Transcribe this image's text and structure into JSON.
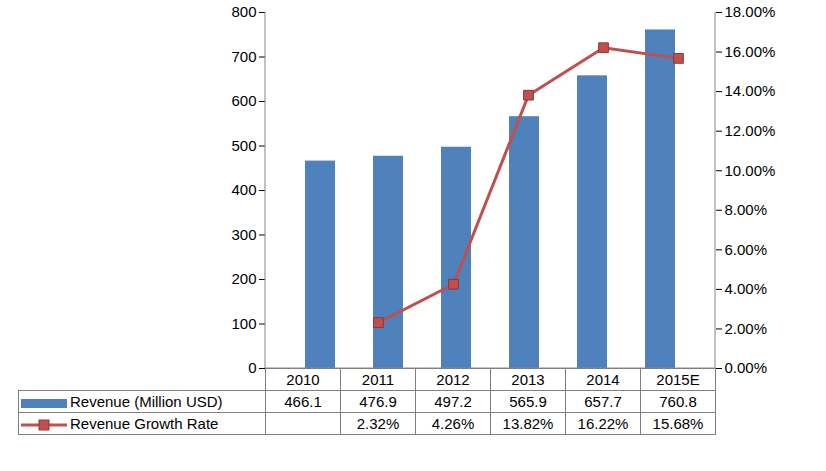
{
  "chart_data": {
    "type": "bar",
    "categories": [
      "2010",
      "2011",
      "2012",
      "2013",
      "2014",
      "2015E"
    ],
    "series": [
      {
        "name": "Revenue (Million USD)",
        "type": "bar",
        "color": "#4f81bd",
        "values": [
          466.1,
          476.9,
          497.2,
          565.9,
          657.7,
          760.8
        ]
      },
      {
        "name": "Revenue Growth Rate",
        "type": "line",
        "axis": "y2",
        "color": "#c0504d",
        "marker": "square",
        "values": [
          null,
          2.32,
          4.26,
          13.82,
          16.22,
          15.68
        ],
        "value_labels": [
          null,
          "2.32%",
          "4.26%",
          "13.82%",
          "16.22%",
          "15.68%"
        ]
      }
    ],
    "ylim": [
      0,
      800
    ],
    "yticks": [
      0,
      100,
      200,
      300,
      400,
      500,
      600,
      700,
      800
    ],
    "y2lim": [
      0,
      18
    ],
    "y2ticks": [
      {
        "value": 0,
        "label": "0.00%"
      },
      {
        "value": 2,
        "label": "2.00%"
      },
      {
        "value": 4,
        "label": "4.00%"
      },
      {
        "value": 6,
        "label": "6.00%"
      },
      {
        "value": 8,
        "label": "8.00%"
      },
      {
        "value": 10,
        "label": "10.00%"
      },
      {
        "value": 12,
        "label": "12.00%"
      },
      {
        "value": 14,
        "label": "14.00%"
      },
      {
        "value": 16,
        "label": "16.00%"
      },
      {
        "value": 18,
        "label": "18.00%"
      }
    ],
    "grid": false,
    "data_labels": true
  }
}
